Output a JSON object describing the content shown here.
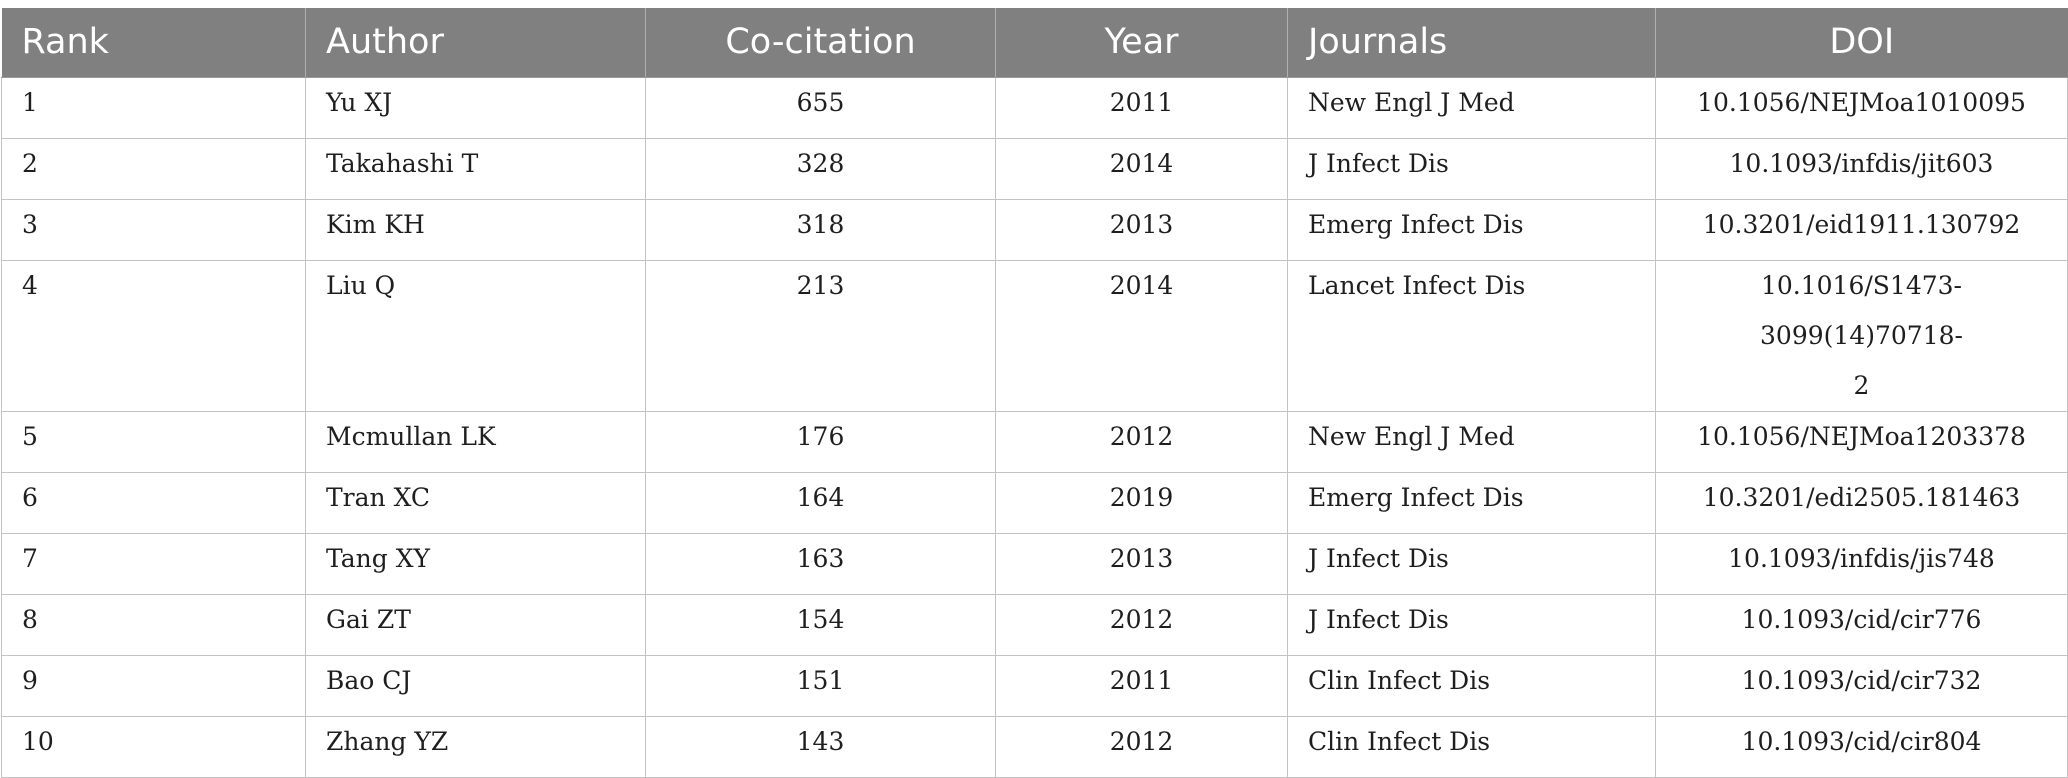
{
  "table": {
    "headers": [
      "Rank",
      "Author",
      "Co-citation",
      "Year",
      "Journals",
      "DOI"
    ],
    "rows": [
      {
        "rank": "1",
        "author": "Yu XJ",
        "cocitation": "655",
        "year": "2011",
        "journal": "New Engl J Med",
        "doi": "10.1056/NEJMoa1010095"
      },
      {
        "rank": "2",
        "author": "Takahashi T",
        "cocitation": "328",
        "year": "2014",
        "journal": "J Infect Dis",
        "doi": "10.1093/infdis/jit603"
      },
      {
        "rank": "3",
        "author": "Kim KH",
        "cocitation": "318",
        "year": "2013",
        "journal": "Emerg Infect Dis",
        "doi": "10.3201/eid1911.130792"
      },
      {
        "rank": "4",
        "author": "Liu Q",
        "cocitation": "213",
        "year": "2014",
        "journal": "Lancet Infect Dis",
        "doi": "10.1016/S1473-3099(14)70718-",
        "doi_cont": "2"
      },
      {
        "rank": "5",
        "author": "Mcmullan LK",
        "cocitation": "176",
        "year": "2012",
        "journal": "New Engl J Med",
        "doi": "10.1056/NEJMoa1203378"
      },
      {
        "rank": "6",
        "author": "Tran XC",
        "cocitation": "164",
        "year": "2019",
        "journal": "Emerg Infect Dis",
        "doi": "10.3201/edi2505.181463"
      },
      {
        "rank": "7",
        "author": "Tang XY",
        "cocitation": "163",
        "year": "2013",
        "journal": "J Infect Dis",
        "doi": "10.1093/infdis/jis748"
      },
      {
        "rank": "8",
        "author": "Gai ZT",
        "cocitation": "154",
        "year": "2012",
        "journal": "J Infect Dis",
        "doi": "10.1093/cid/cir776"
      },
      {
        "rank": "9",
        "author": "Bao CJ",
        "cocitation": "151",
        "year": "2011",
        "journal": "Clin Infect Dis",
        "doi": "10.1093/cid/cir732"
      },
      {
        "rank": "10",
        "author": "Zhang YZ",
        "cocitation": "143",
        "year": "2012",
        "journal": "Clin Infect Dis",
        "doi": "10.1093/cid/cir804"
      }
    ]
  }
}
